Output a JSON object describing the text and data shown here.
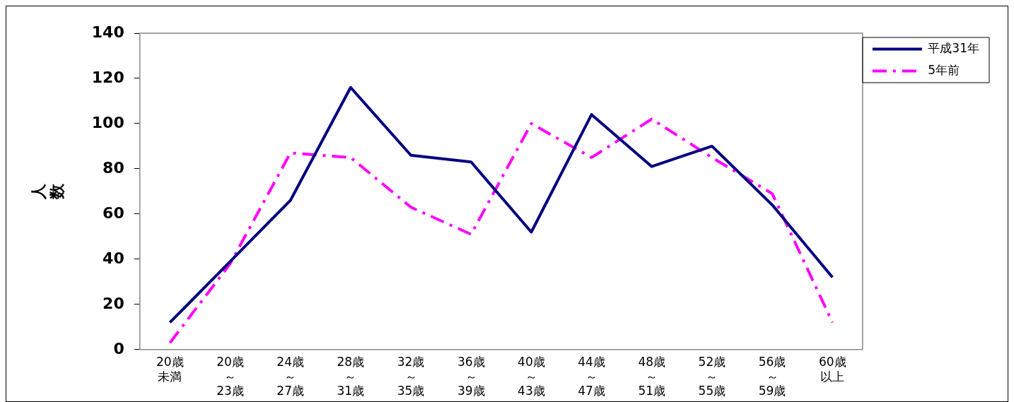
{
  "chart_data": {
    "type": "line",
    "ylabel": "人数",
    "categories": [
      "20歳未満",
      "20歳～23歳",
      "24歳～27歳",
      "28歳～31歳",
      "32歳～35歳",
      "36歳～39歳",
      "40歳～43歳",
      "44歳～47歳",
      "48歳～51歳",
      "52歳～55歳",
      "56歳～59歳",
      "60歳以上"
    ],
    "series": [
      {
        "name": "平成31年",
        "color": "#000080",
        "line_style": "solid",
        "values": [
          12,
          39,
          66,
          116,
          86,
          83,
          52,
          104,
          81,
          90,
          64,
          32
        ]
      },
      {
        "name": "5年前",
        "color": "#ff00ff",
        "line_style": "dashed",
        "values": [
          3,
          38,
          87,
          85,
          63,
          51,
          100,
          85,
          102,
          85,
          69,
          12
        ]
      }
    ],
    "ylim": [
      0,
      140
    ],
    "yticks": [
      0,
      20,
      40,
      60,
      80,
      100,
      120,
      140
    ],
    "grid": false,
    "legend": "top right",
    "marker": "none"
  }
}
